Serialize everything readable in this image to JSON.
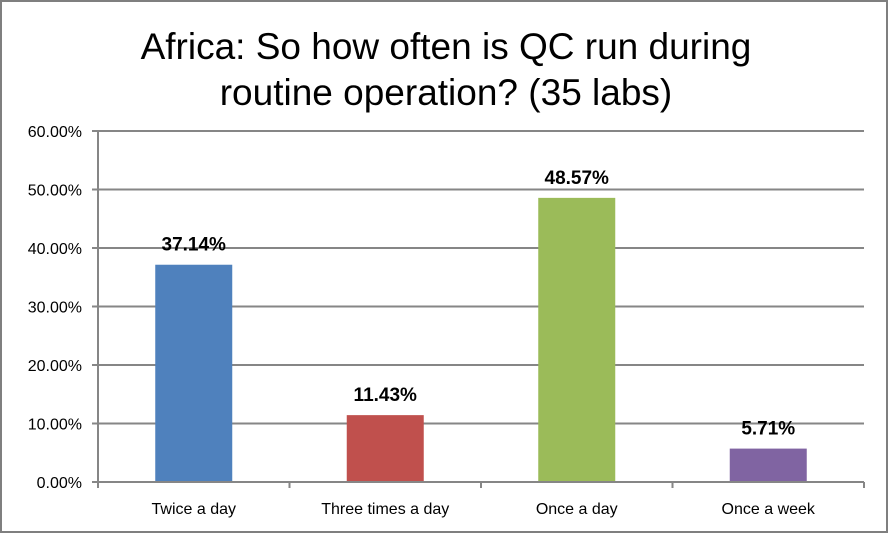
{
  "chart_data": {
    "type": "bar",
    "title": "Africa: So how often is QC run during routine operation? (35 labs)",
    "title_lines": [
      "Africa: So how often is QC run during",
      "routine operation? (35 labs)"
    ],
    "categories": [
      "Twice a day",
      "Three times a day",
      "Once a day",
      "Once a week"
    ],
    "values": [
      37.14,
      11.43,
      48.57,
      5.71
    ],
    "data_labels": [
      "37.14%",
      "11.43%",
      "48.57%",
      "5.71%"
    ],
    "colors": [
      "#4f81bd",
      "#c0504d",
      "#9bbb59",
      "#8064a2"
    ],
    "ylim": [
      0,
      60
    ],
    "yticks": [
      "0.00%",
      "10.00%",
      "20.00%",
      "30.00%",
      "40.00%",
      "50.00%",
      "60.00%"
    ],
    "grid": true,
    "legend": "none",
    "xlabel": "",
    "ylabel": ""
  }
}
